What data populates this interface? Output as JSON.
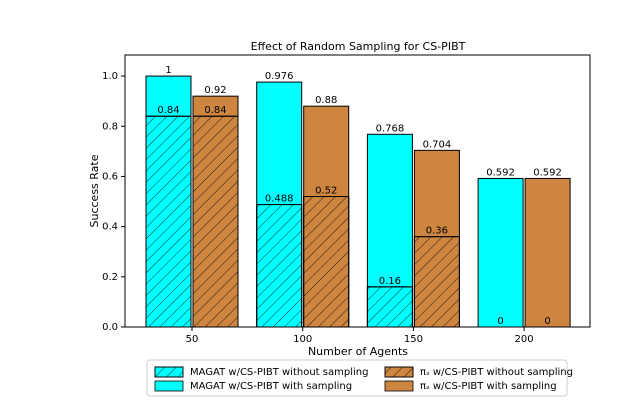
{
  "chart_data": {
    "type": "bar",
    "title": "Effect of Random Sampling for CS-PIBT",
    "x_label": "Number of Agents",
    "y_label": "Success Rate",
    "categories": [
      "50",
      "100",
      "150",
      "200"
    ],
    "series": [
      {
        "name": "MAGAT w/CS-PIBT without sampling",
        "color": "#00ffff",
        "hatch": true,
        "values": [
          0.84,
          0.488,
          0.16,
          0
        ]
      },
      {
        "name": "MAGAT w/CS-PIBT with sampling",
        "color": "#00ffff",
        "hatch": false,
        "values": [
          1,
          0.976,
          0.768,
          0.592
        ]
      },
      {
        "name": "πₛ w/CS-PIBT without sampling",
        "color": "#cd853f",
        "hatch": true,
        "values": [
          0.84,
          0.52,
          0.36,
          0
        ]
      },
      {
        "name": "πₛ w/CS-PIBT with sampling",
        "color": "#cd853f",
        "hatch": false,
        "values": [
          0.92,
          0.88,
          0.704,
          0.592
        ]
      }
    ],
    "ylim": [
      0,
      1.084
    ],
    "yticks": [
      {
        "value": 0,
        "label": "0.0"
      },
      0.2,
      0.4,
      0.6,
      0.8,
      {
        "value": 1,
        "label": "1.0"
      }
    ],
    "legend": "lower center"
  }
}
